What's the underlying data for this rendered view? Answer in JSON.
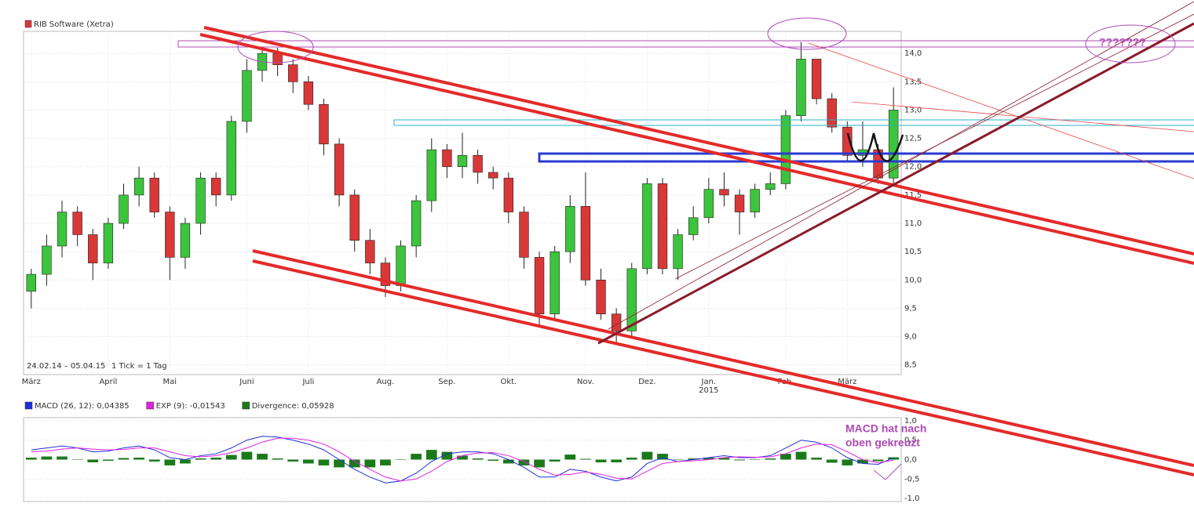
{
  "chart_data": [
    {
      "type": "candlestick",
      "title": "RIB Software (Xetra)",
      "date_range": "24.02.14 – 05.04.15",
      "tick_info": "1 Tick = 1 Tag",
      "year_label": "2015",
      "categories": [
        "März",
        null,
        null,
        null,
        null,
        "April",
        null,
        null,
        null,
        "Mai",
        null,
        null,
        null,
        null,
        "Juni",
        null,
        null,
        null,
        "Juli",
        null,
        null,
        null,
        null,
        "Aug.",
        null,
        null,
        null,
        "Sep.",
        null,
        null,
        null,
        "Okt.",
        null,
        null,
        null,
        null,
        "Nov.",
        null,
        null,
        null,
        "Dez.",
        null,
        null,
        null,
        "Jan.",
        null,
        null,
        null,
        null,
        "Feb.",
        null,
        null,
        null,
        "März",
        null,
        null,
        null
      ],
      "open": [
        9.8,
        10.1,
        10.6,
        11.2,
        10.8,
        10.3,
        11.0,
        11.5,
        11.8,
        11.2,
        10.4,
        11.0,
        11.8,
        11.5,
        12.8,
        13.7,
        14.0,
        13.8,
        13.5,
        13.1,
        12.4,
        11.5,
        10.7,
        10.3,
        9.9,
        10.6,
        11.4,
        12.3,
        12.0,
        12.2,
        11.9,
        11.8,
        11.2,
        10.4,
        9.4,
        10.5,
        11.3,
        10.0,
        9.4,
        9.1,
        10.2,
        11.7,
        10.2,
        10.8,
        11.1,
        11.6,
        11.5,
        11.2,
        11.6,
        11.7,
        12.9,
        13.9,
        13.2,
        12.7,
        12.2,
        12.3,
        11.8
      ],
      "high": [
        10.2,
        10.8,
        11.4,
        11.3,
        10.9,
        11.1,
        11.7,
        12.0,
        11.9,
        11.3,
        11.1,
        11.9,
        11.9,
        12.9,
        13.9,
        14.1,
        14.1,
        13.9,
        13.6,
        13.2,
        12.5,
        11.6,
        10.9,
        10.4,
        10.7,
        11.5,
        12.5,
        12.4,
        12.6,
        12.3,
        12.0,
        11.9,
        11.3,
        10.5,
        10.6,
        11.5,
        11.9,
        10.2,
        9.5,
        10.3,
        11.8,
        11.8,
        10.9,
        11.3,
        11.8,
        11.9,
        11.6,
        11.7,
        11.9,
        13.0,
        14.2,
        13.9,
        13.3,
        12.8,
        12.8,
        12.4,
        13.4
      ],
      "low": [
        9.5,
        9.9,
        10.4,
        10.6,
        10.0,
        10.2,
        10.9,
        11.3,
        11.1,
        10.0,
        10.2,
        10.8,
        11.3,
        11.4,
        12.6,
        13.5,
        13.6,
        13.3,
        13.0,
        12.2,
        11.3,
        10.5,
        10.1,
        9.7,
        9.8,
        10.4,
        11.2,
        11.8,
        11.8,
        11.7,
        11.6,
        11.0,
        10.2,
        9.2,
        9.3,
        10.3,
        9.9,
        9.3,
        8.9,
        9.0,
        10.1,
        10.1,
        10.0,
        10.7,
        11.0,
        11.3,
        10.8,
        11.1,
        11.5,
        11.6,
        12.8,
        13.1,
        12.6,
        12.1,
        12.0,
        11.7,
        11.7
      ],
      "close": [
        10.1,
        10.6,
        11.2,
        10.8,
        10.3,
        11.0,
        11.5,
        11.8,
        11.2,
        10.4,
        11.0,
        11.8,
        11.5,
        12.8,
        13.7,
        14.0,
        13.8,
        13.5,
        13.1,
        12.4,
        11.5,
        10.7,
        10.3,
        9.9,
        10.6,
        11.4,
        12.3,
        12.0,
        12.2,
        11.9,
        11.8,
        11.2,
        10.4,
        9.4,
        10.5,
        11.3,
        10.0,
        9.4,
        9.1,
        10.2,
        11.7,
        10.2,
        10.8,
        11.1,
        11.6,
        11.5,
        11.2,
        11.6,
        11.7,
        12.9,
        13.9,
        13.2,
        12.7,
        12.2,
        12.3,
        11.8,
        13.0
      ],
      "up_color": "#3cc43c",
      "down_color": "#d83838",
      "legend_color": "#d83838",
      "ylim": [
        8.33,
        14.39
      ],
      "yticks": [
        {
          "value": 8.5,
          "label": "8,5"
        },
        {
          "value": 9.0,
          "label": "9,0"
        },
        {
          "value": 9.5,
          "label": "9,5"
        },
        {
          "value": 10.0,
          "label": "10,0"
        },
        {
          "value": 10.5,
          "label": "10,5"
        },
        {
          "value": 11.0,
          "label": "11,0"
        },
        {
          "value": 11.5,
          "label": "11,5"
        },
        {
          "value": 12.0,
          "label": "12,0"
        },
        {
          "value": 12.5,
          "label": "12,5"
        },
        {
          "value": 13.0,
          "label": "13,0"
        },
        {
          "value": 13.5,
          "label": "13,5"
        },
        {
          "value": 14.0,
          "label": "14,0"
        }
      ],
      "grid": true,
      "annotation": "???????"
    },
    {
      "type": "macd",
      "series": [
        {
          "name": "MACD (26, 12): 0,04385",
          "color": "#1f2fd8",
          "style": "line",
          "values": [
            0.25,
            0.3,
            0.35,
            0.3,
            0.2,
            0.22,
            0.3,
            0.35,
            0.25,
            0.05,
            0.0,
            0.1,
            0.15,
            0.3,
            0.5,
            0.6,
            0.58,
            0.5,
            0.4,
            0.25,
            0.0,
            -0.25,
            -0.45,
            -0.6,
            -0.55,
            -0.35,
            -0.05,
            0.15,
            0.2,
            0.2,
            0.15,
            0.0,
            -0.2,
            -0.45,
            -0.45,
            -0.25,
            -0.3,
            -0.45,
            -0.55,
            -0.45,
            -0.1,
            0.05,
            -0.05,
            0.0,
            0.05,
            0.1,
            0.05,
            0.05,
            0.1,
            0.3,
            0.5,
            0.45,
            0.3,
            0.05,
            -0.1,
            -0.12,
            0.04385
          ]
        },
        {
          "name": "EXP (9): -0,01543",
          "color": "#e020e0",
          "style": "line",
          "values": [
            0.2,
            0.22,
            0.27,
            0.3,
            0.27,
            0.25,
            0.26,
            0.3,
            0.3,
            0.2,
            0.1,
            0.07,
            0.1,
            0.18,
            0.3,
            0.45,
            0.55,
            0.55,
            0.5,
            0.4,
            0.2,
            -0.05,
            -0.25,
            -0.45,
            -0.55,
            -0.5,
            -0.3,
            -0.05,
            0.1,
            0.17,
            0.18,
            0.1,
            -0.05,
            -0.25,
            -0.4,
            -0.38,
            -0.32,
            -0.38,
            -0.48,
            -0.5,
            -0.3,
            -0.1,
            -0.05,
            -0.03,
            0.0,
            0.05,
            0.07,
            0.06,
            0.07,
            0.15,
            0.3,
            0.4,
            0.38,
            0.2,
            0.0,
            -0.08,
            -0.01543
          ]
        },
        {
          "name": "Divergence: 0,05928",
          "color": "#1a7a1a",
          "style": "bar",
          "values": [
            0.05,
            0.08,
            0.08,
            0.0,
            -0.07,
            -0.03,
            0.04,
            0.05,
            -0.05,
            -0.15,
            -0.1,
            0.03,
            0.05,
            0.12,
            0.2,
            0.15,
            0.03,
            -0.05,
            -0.1,
            -0.15,
            -0.2,
            -0.2,
            -0.2,
            -0.15,
            0.0,
            0.15,
            0.25,
            0.2,
            0.1,
            0.03,
            -0.03,
            -0.1,
            -0.15,
            -0.2,
            -0.05,
            0.13,
            0.02,
            -0.07,
            -0.07,
            0.05,
            0.2,
            0.15,
            0.0,
            0.03,
            0.05,
            0.05,
            -0.02,
            -0.01,
            0.03,
            0.15,
            0.2,
            0.05,
            -0.08,
            -0.15,
            -0.1,
            -0.04,
            0.05928
          ]
        }
      ],
      "ylim": [
        -1.08,
        1.08
      ],
      "yticks": [
        {
          "value": -1.0,
          "label": "-1,0"
        },
        {
          "value": -0.5,
          "label": "-0,5"
        },
        {
          "value": 0.0,
          "label": "0,0"
        },
        {
          "value": 0.5,
          "label": "0,5"
        },
        {
          "value": 1.0,
          "label": "1,0"
        }
      ],
      "grid": true,
      "annotation": [
        "MACD hat nach",
        "oben gekreuzt"
      ]
    }
  ]
}
